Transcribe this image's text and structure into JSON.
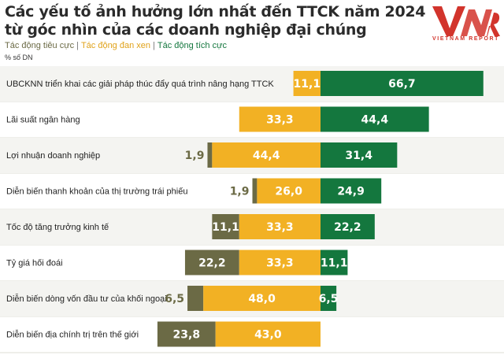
{
  "chart_data": {
    "type": "bar",
    "title": "Các yếu tố ảnh hưởng lớn nhất đến TTCK năm 2024",
    "subtitle": "từ góc nhìn của các doanh nghiệp đại chúng",
    "unit": "% số DN",
    "stacked": "diverging",
    "categories": [
      "UBCKNN triển khai các giải pháp thúc đẩy quá trình nâng hạng TTCK",
      "Lãi suất ngân hàng",
      "Lợi nhuận doanh nghiệp",
      "Diễn biến thanh khoản của thị trường trái phiếu",
      "Tốc độ tăng trưởng kinh tế",
      "Tỷ giá hối đoái",
      "Diễn biến dòng vốn đầu tư của khối ngoại",
      "Diễn biến địa chính trị trên thế giới"
    ],
    "series": [
      {
        "name": "Tác động tiêu cực",
        "color": "#6b6a45",
        "values": [
          null,
          null,
          1.9,
          1.9,
          11.1,
          22.2,
          6.5,
          23.8
        ]
      },
      {
        "name": "Tác động đan xen",
        "color": "#f2b124",
        "values": [
          11.1,
          33.3,
          44.4,
          26.0,
          33.3,
          33.3,
          48.0,
          43.0
        ]
      },
      {
        "name": "Tác động tích cực",
        "color": "#14773e",
        "values": [
          66.7,
          44.4,
          31.4,
          24.9,
          22.2,
          11.1,
          6.5,
          null
        ]
      }
    ],
    "value_labels": [
      [
        "",
        "11,1",
        "66,7"
      ],
      [
        "",
        "33,3",
        "44,4"
      ],
      [
        "1,9",
        "44,4",
        "31,4"
      ],
      [
        "1,9",
        "26,0",
        "24,9"
      ],
      [
        "11,1",
        "33,3",
        "22,2"
      ],
      [
        "22,2",
        "33,3",
        "11,1"
      ],
      [
        "6,5",
        "48,0",
        "6,5"
      ],
      [
        "23,8",
        "43,0",
        ""
      ]
    ],
    "legend_position": "top-left",
    "grid": false
  },
  "legend_separator": "|",
  "logo": {
    "brand": "VNR",
    "text": "VIETNAM REPORT",
    "color": "#d2342c"
  }
}
